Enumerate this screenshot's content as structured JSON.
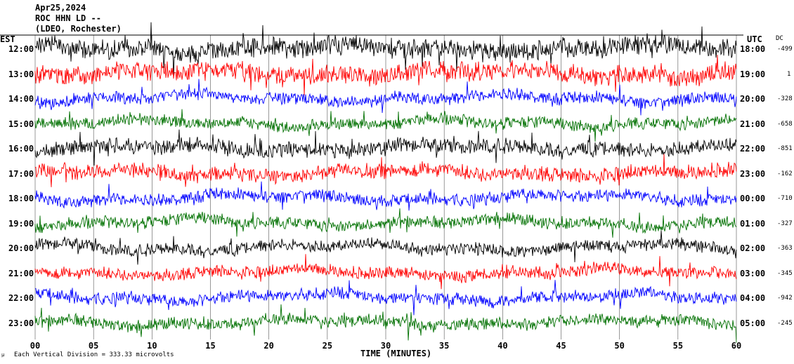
{
  "header": {
    "date": "Apr25,2024",
    "station": "ROC HHN LD --",
    "location": "(LDEO, Rochester)"
  },
  "left_axis_title": "EST",
  "right_axis_title": "UTC",
  "dc_title": "DC",
  "footer_note": "Each Vertical Division =  333.33 microvolts",
  "corner_mark": "μ",
  "colors": {
    "trace_cycle": [
      "#000000",
      "#ff0000",
      "#0000ff",
      "#007000"
    ],
    "gridline": "#000000"
  },
  "chart_data": {
    "type": "line",
    "xlabel": "TIME (MINUTES)",
    "xlim": [
      0,
      60
    ],
    "x_ticks": [
      "00",
      "05",
      "10",
      "15",
      "20",
      "25",
      "30",
      "35",
      "40",
      "45",
      "50",
      "55",
      "60"
    ],
    "series": [
      {
        "est": "12:00",
        "utc": "18:00",
        "dc": "-499",
        "color": "black"
      },
      {
        "est": "13:00",
        "utc": "19:00",
        "dc": "1",
        "color": "red"
      },
      {
        "est": "14:00",
        "utc": "20:00",
        "dc": "-328",
        "color": "blue"
      },
      {
        "est": "15:00",
        "utc": "21:00",
        "dc": "-658",
        "color": "green"
      },
      {
        "est": "16:00",
        "utc": "22:00",
        "dc": "-851",
        "color": "black"
      },
      {
        "est": "17:00",
        "utc": "23:00",
        "dc": "-162",
        "color": "red"
      },
      {
        "est": "18:00",
        "utc": "00:00",
        "dc": "-710",
        "color": "blue"
      },
      {
        "est": "19:00",
        "utc": "01:00",
        "dc": "-327",
        "color": "green"
      },
      {
        "est": "20:00",
        "utc": "02:00",
        "dc": "-363",
        "color": "black"
      },
      {
        "est": "21:00",
        "utc": "03:00",
        "dc": "-345",
        "color": "red"
      },
      {
        "est": "22:00",
        "utc": "04:00",
        "dc": "-942",
        "color": "blue"
      },
      {
        "est": "23:00",
        "utc": "05:00",
        "dc": "-245",
        "color": "green"
      }
    ]
  }
}
